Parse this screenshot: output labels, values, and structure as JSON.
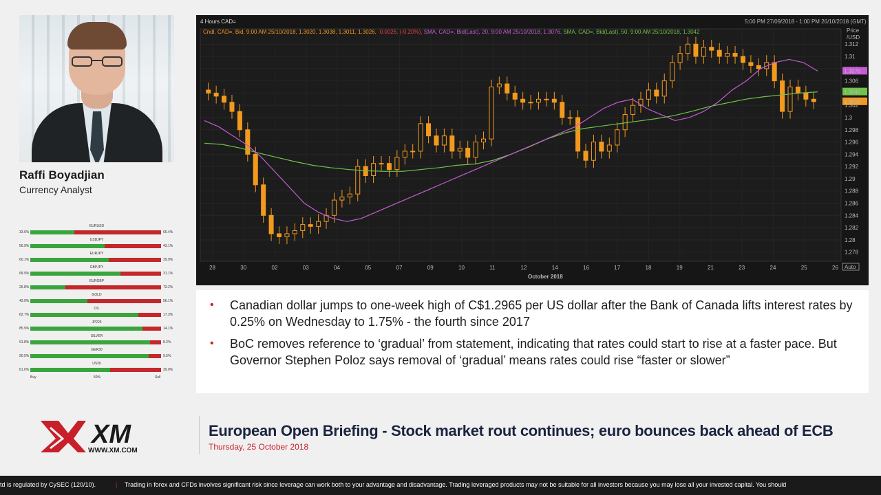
{
  "presenter": {
    "name": "Raffi Boyadjian",
    "role": "Currency Analyst"
  },
  "sentiment": {
    "rows": [
      {
        "name": "EURUSD",
        "buy": "33.6%",
        "sell": "66.4%",
        "buy_fraction": 0.336
      },
      {
        "name": "USDJPY",
        "buy": "56.9%",
        "sell": "43.1%",
        "buy_fraction": 0.569
      },
      {
        "name": "EURJPY",
        "buy": "60.1%",
        "sell": "39.9%",
        "buy_fraction": 0.601
      },
      {
        "name": "GBPJPY",
        "buy": "68.9%",
        "sell": "31.1%",
        "buy_fraction": 0.689
      },
      {
        "name": "EURGBP",
        "buy": "26.8%",
        "sell": "73.2%",
        "buy_fraction": 0.268
      },
      {
        "name": "GOLD",
        "buy": "43.9%",
        "sell": "56.1%",
        "buy_fraction": 0.439
      },
      {
        "name": "OIL",
        "buy": "82.7%",
        "sell": "17.3%",
        "buy_fraction": 0.827
      },
      {
        "name": "JP225",
        "buy": "85.9%",
        "sell": "14.1%",
        "buy_fraction": 0.859
      },
      {
        "name": "SILVER",
        "buy": "91.8%",
        "sell": "8.2%",
        "buy_fraction": 0.918
      },
      {
        "name": "GER30",
        "buy": "90.5%",
        "sell": "9.5%",
        "buy_fraction": 0.905
      },
      {
        "name": "US30",
        "buy": "61.0%",
        "sell": "39.0%",
        "buy_fraction": 0.61
      }
    ],
    "footer": {
      "buy": "Buy",
      "mid": "50%",
      "sell": "Sell"
    }
  },
  "chart_data": {
    "type": "line",
    "title": "4 Hours CAD=",
    "range_label": "5:00 PM 27/09/2018 - 1:00 PM 26/10/2018 (GMT)",
    "legend": {
      "cndl": "Cndl, CAD=, Bid, 9:00 AM 25/10/2018, 1.3020, 1.3038, 1.3011, 1.3026,",
      "change": "-0.0026, (-0.20%),",
      "sma20": "SMA, CAD=, Bid(Last), 20, 9:00 AM 25/10/2018, 1.3076,",
      "sma50": "SMA, CAD=, Bid(Last), 50, 9:00 AM 25/10/2018, 1.3042"
    },
    "ylabel": "Price\n/USD",
    "ylabel_line1": "Price",
    "ylabel_line2": "/USD",
    "ylim": [
      1.2765,
      1.3145
    ],
    "y_ticks": [
      "1.312",
      "1.31",
      "1.308",
      "1.306",
      "1.304",
      "1.302",
      "1.3",
      "1.298",
      "1.296",
      "1.294",
      "1.292",
      "1.29",
      "1.288",
      "1.286",
      "1.284",
      "1.282",
      "1.28",
      "1.278"
    ],
    "x_ticks": [
      "28",
      "30",
      "02",
      "03",
      "04",
      "05",
      "07",
      "09",
      "10",
      "11",
      "12",
      "14",
      "16",
      "17",
      "18",
      "19",
      "21",
      "23",
      "24",
      "25",
      "26"
    ],
    "xlabel": "October 2018",
    "auto_label": "Auto",
    "price_tags": [
      {
        "label": "1.3076",
        "color": "#c75bd6"
      },
      {
        "label": "1.3042",
        "color": "#6fc24a"
      },
      {
        "label": "1.3026",
        "color": "#f39a1e"
      }
    ],
    "close": [
      1.304,
      1.3035,
      1.3025,
      1.301,
      1.298,
      1.294,
      1.289,
      1.284,
      1.281,
      1.2805,
      1.281,
      1.2815,
      1.2825,
      1.2822,
      1.283,
      1.284,
      1.2865,
      1.287,
      1.2875,
      1.292,
      1.2905,
      1.2925,
      1.2925,
      1.2915,
      1.2935,
      1.2945,
      1.2945,
      1.299,
      1.297,
      1.2955,
      1.297,
      1.2945,
      1.295,
      1.2935,
      1.296,
      1.2965,
      1.305,
      1.3055,
      1.304,
      1.303,
      1.3025,
      1.3025,
      1.303,
      1.303,
      1.3025,
      1.3,
      1.3,
      1.2945,
      1.293,
      1.296,
      1.2945,
      1.2955,
      1.298,
      1.3005,
      1.302,
      1.303,
      1.3045,
      1.3035,
      1.306,
      1.309,
      1.3105,
      1.312,
      1.31,
      1.3115,
      1.311,
      1.31,
      1.3105,
      1.31,
      1.309,
      1.3085,
      1.308,
      1.309,
      1.306,
      1.301,
      1.305,
      1.304,
      1.303,
      1.3026
    ],
    "sma20": [
      1.2995,
      1.2985,
      1.297,
      1.2955,
      1.2935,
      1.291,
      1.2885,
      1.286,
      1.2845,
      1.2835,
      1.283,
      1.2835,
      1.2845,
      1.2855,
      1.2865,
      1.2875,
      1.2885,
      1.2895,
      1.2905,
      1.2915,
      1.2925,
      1.2935,
      1.2945,
      1.2955,
      1.2965,
      1.2975,
      1.2985,
      1.3,
      1.3015,
      1.3025,
      1.303,
      1.3015,
      1.3005,
      1.2995,
      1.3,
      1.301,
      1.3025,
      1.3045,
      1.306,
      1.308,
      1.309,
      1.3095,
      1.309,
      1.3076
    ],
    "sma50": [
      1.2958,
      1.2956,
      1.295,
      1.2942,
      1.2935,
      1.2928,
      1.2922,
      1.2918,
      1.2915,
      1.2913,
      1.2912,
      1.2912,
      1.2915,
      1.2918,
      1.2922,
      1.2924,
      1.293,
      1.294,
      1.2952,
      1.2965,
      1.2975,
      1.2982,
      1.2986,
      1.299,
      1.2994,
      1.2998,
      1.3003,
      1.301,
      1.3018,
      1.3024,
      1.303,
      1.3034,
      1.3037,
      1.304,
      1.3042
    ]
  },
  "bullets": [
    "Canadian dollar jumps to one-week high of C$1.2965 per US dollar after the Bank of Canada lifts interest rates by 0.25% on Wednesday to 1.75% - the fourth since 2017",
    "BoC removes reference to ‘gradual’ from statement, indicating that rates could start to rise at a faster pace. But Governor Stephen Poloz says removal of ‘gradual’ means rates could rise “faster or slower”"
  ],
  "bullet_marker": "•",
  "brand": {
    "logo_text": "XM",
    "url": "WWW.XM.COM",
    "red": "#c8202a",
    "navy": "#1a2440"
  },
  "briefing": {
    "title": "European Open Briefing - Stock market rout continues; euro bounces back ahead of ECB",
    "date": "Thursday, 25 October 2018"
  },
  "ticker": {
    "left": "td is regulated by CySEC (120/10).",
    "separator": "|",
    "main": "Trading in forex and CFDs involves significant risk since leverage can work both to your advantage and disadvantage. Trading leveraged products may not be suitable for all investors because you may lose all your invested capital. You should"
  }
}
